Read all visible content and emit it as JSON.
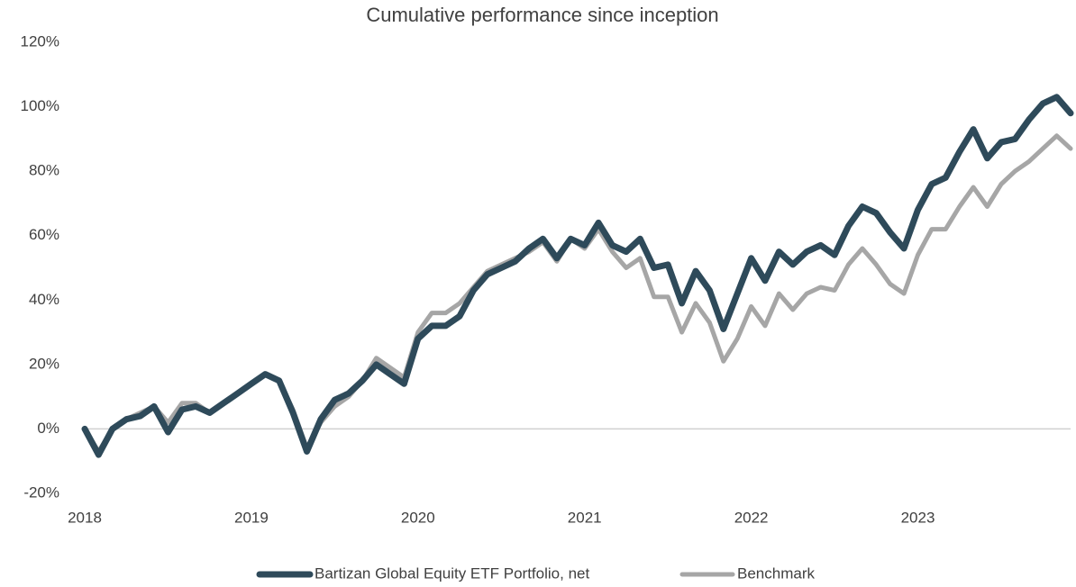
{
  "chart_data": {
    "type": "line",
    "title": "Cumulative performance since inception",
    "categories": [
      "2018",
      null,
      null,
      null,
      null,
      null,
      null,
      null,
      null,
      null,
      null,
      null,
      "2019",
      null,
      null,
      null,
      null,
      null,
      null,
      null,
      null,
      null,
      null,
      null,
      "2020",
      null,
      null,
      null,
      null,
      null,
      null,
      null,
      null,
      null,
      null,
      null,
      "2021",
      null,
      null,
      null,
      null,
      null,
      null,
      null,
      null,
      null,
      null,
      null,
      "2022",
      null,
      null,
      null,
      null,
      null,
      null,
      null,
      null,
      null,
      null,
      null,
      "2023",
      null,
      null,
      null,
      null,
      null,
      null,
      null,
      null,
      null,
      null,
      null
    ],
    "series": [
      {
        "name": "Bartizan Global Equity ETF Portfolio, net",
        "color": "#2e4a5a",
        "values": [
          0,
          -8,
          0,
          3,
          4,
          7,
          -1,
          6,
          7,
          5,
          8,
          11,
          14,
          17,
          15,
          5,
          -7,
          3,
          9,
          11,
          15,
          20,
          17,
          14,
          28,
          32,
          32,
          35,
          43,
          48,
          50,
          52,
          56,
          59,
          53,
          59,
          57,
          64,
          57,
          55,
          59,
          50,
          51,
          39,
          49,
          43,
          31,
          42,
          53,
          46,
          55,
          51,
          55,
          57,
          54,
          63,
          69,
          67,
          61,
          56,
          68,
          76,
          78,
          86,
          93,
          84,
          89,
          90,
          96,
          101,
          103,
          98
        ]
      },
      {
        "name": "Benchmark",
        "color": "#a6a6a6",
        "values": [
          0,
          -7,
          0,
          3,
          5,
          7,
          2,
          8,
          8,
          5,
          8,
          11,
          14,
          17,
          15,
          6,
          -6,
          2,
          7,
          10,
          15,
          22,
          19,
          16,
          30,
          36,
          36,
          39,
          44,
          49,
          51,
          53,
          55,
          58,
          52,
          59,
          56,
          62,
          55,
          50,
          53,
          41,
          41,
          30,
          39,
          33,
          21,
          28,
          38,
          32,
          42,
          37,
          42,
          44,
          43,
          51,
          56,
          51,
          45,
          42,
          54,
          62,
          62,
          69,
          75,
          69,
          76,
          80,
          83,
          87,
          91,
          87
        ]
      }
    ],
    "ylim": [
      -20,
      120
    ],
    "yticks": [
      {
        "value": -20,
        "label": "-20%"
      },
      {
        "value": 0,
        "label": "0%"
      },
      {
        "value": 20,
        "label": "20%"
      },
      {
        "value": 40,
        "label": "40%"
      },
      {
        "value": 60,
        "label": "60%"
      },
      {
        "value": 80,
        "label": "80%"
      },
      {
        "value": 100,
        "label": "100%"
      },
      {
        "value": 120,
        "label": "120%"
      }
    ],
    "legend": "bottom"
  }
}
